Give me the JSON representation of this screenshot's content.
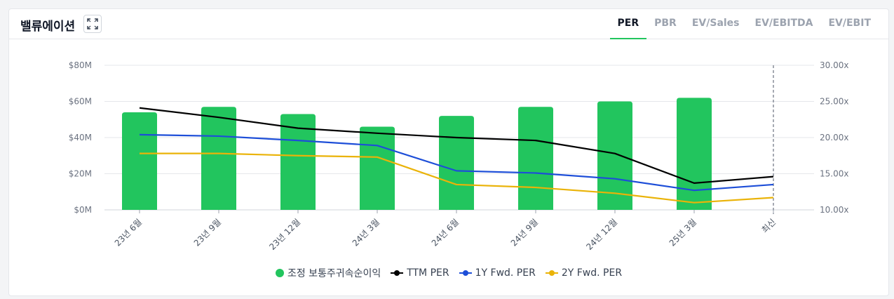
{
  "header": {
    "title": "밸류에이션",
    "expand_icon": "expand-icon",
    "tabs": [
      {
        "label": "PER",
        "active": true
      },
      {
        "label": "PBR",
        "active": false
      },
      {
        "label": "EV/Sales",
        "active": false
      },
      {
        "label": "EV/EBITDA",
        "active": false
      },
      {
        "label": "EV/EBIT",
        "active": false
      }
    ]
  },
  "colors": {
    "bar": "#22c55e",
    "ttm": "#000000",
    "fwd1": "#1d4ed8",
    "fwd2": "#eab308",
    "accent": "#22c55e"
  },
  "chart_data": {
    "type": "bar",
    "categories": [
      "23년 6월",
      "23년 9월",
      "23년 12월",
      "24년 3월",
      "24년 6월",
      "24년 9월",
      "24년 12월",
      "25년 3월",
      "최신"
    ],
    "left_axis": {
      "ticks": [
        "$0M",
        "$20M",
        "$40M",
        "$60M",
        "$80M"
      ],
      "min": 0,
      "max": 80
    },
    "right_axis": {
      "ticks": [
        "10.00x",
        "15.00x",
        "20.00x",
        "25.00x",
        "30.00x"
      ],
      "min": 10,
      "max": 30
    },
    "series": [
      {
        "name": "조정 보통주귀속순이익",
        "type": "bar",
        "axis": "left",
        "values": [
          54,
          57,
          53,
          46,
          52,
          57,
          60,
          62,
          null
        ]
      },
      {
        "name": "TTM PER",
        "type": "line",
        "axis": "right",
        "values": [
          24.1,
          22.8,
          21.3,
          20.6,
          20.0,
          19.6,
          17.8,
          13.7,
          14.6
        ]
      },
      {
        "name": "1Y Fwd. PER",
        "type": "line",
        "axis": "right",
        "values": [
          20.4,
          20.2,
          19.6,
          18.9,
          15.4,
          15.1,
          14.3,
          12.7,
          13.5
        ]
      },
      {
        "name": "2Y Fwd. PER",
        "type": "line",
        "axis": "right",
        "values": [
          17.8,
          17.8,
          17.5,
          17.3,
          13.5,
          13.1,
          12.3,
          11.0,
          11.7
        ]
      }
    ],
    "grid": true,
    "latest_marker": "최신",
    "legend_position": "bottom"
  }
}
